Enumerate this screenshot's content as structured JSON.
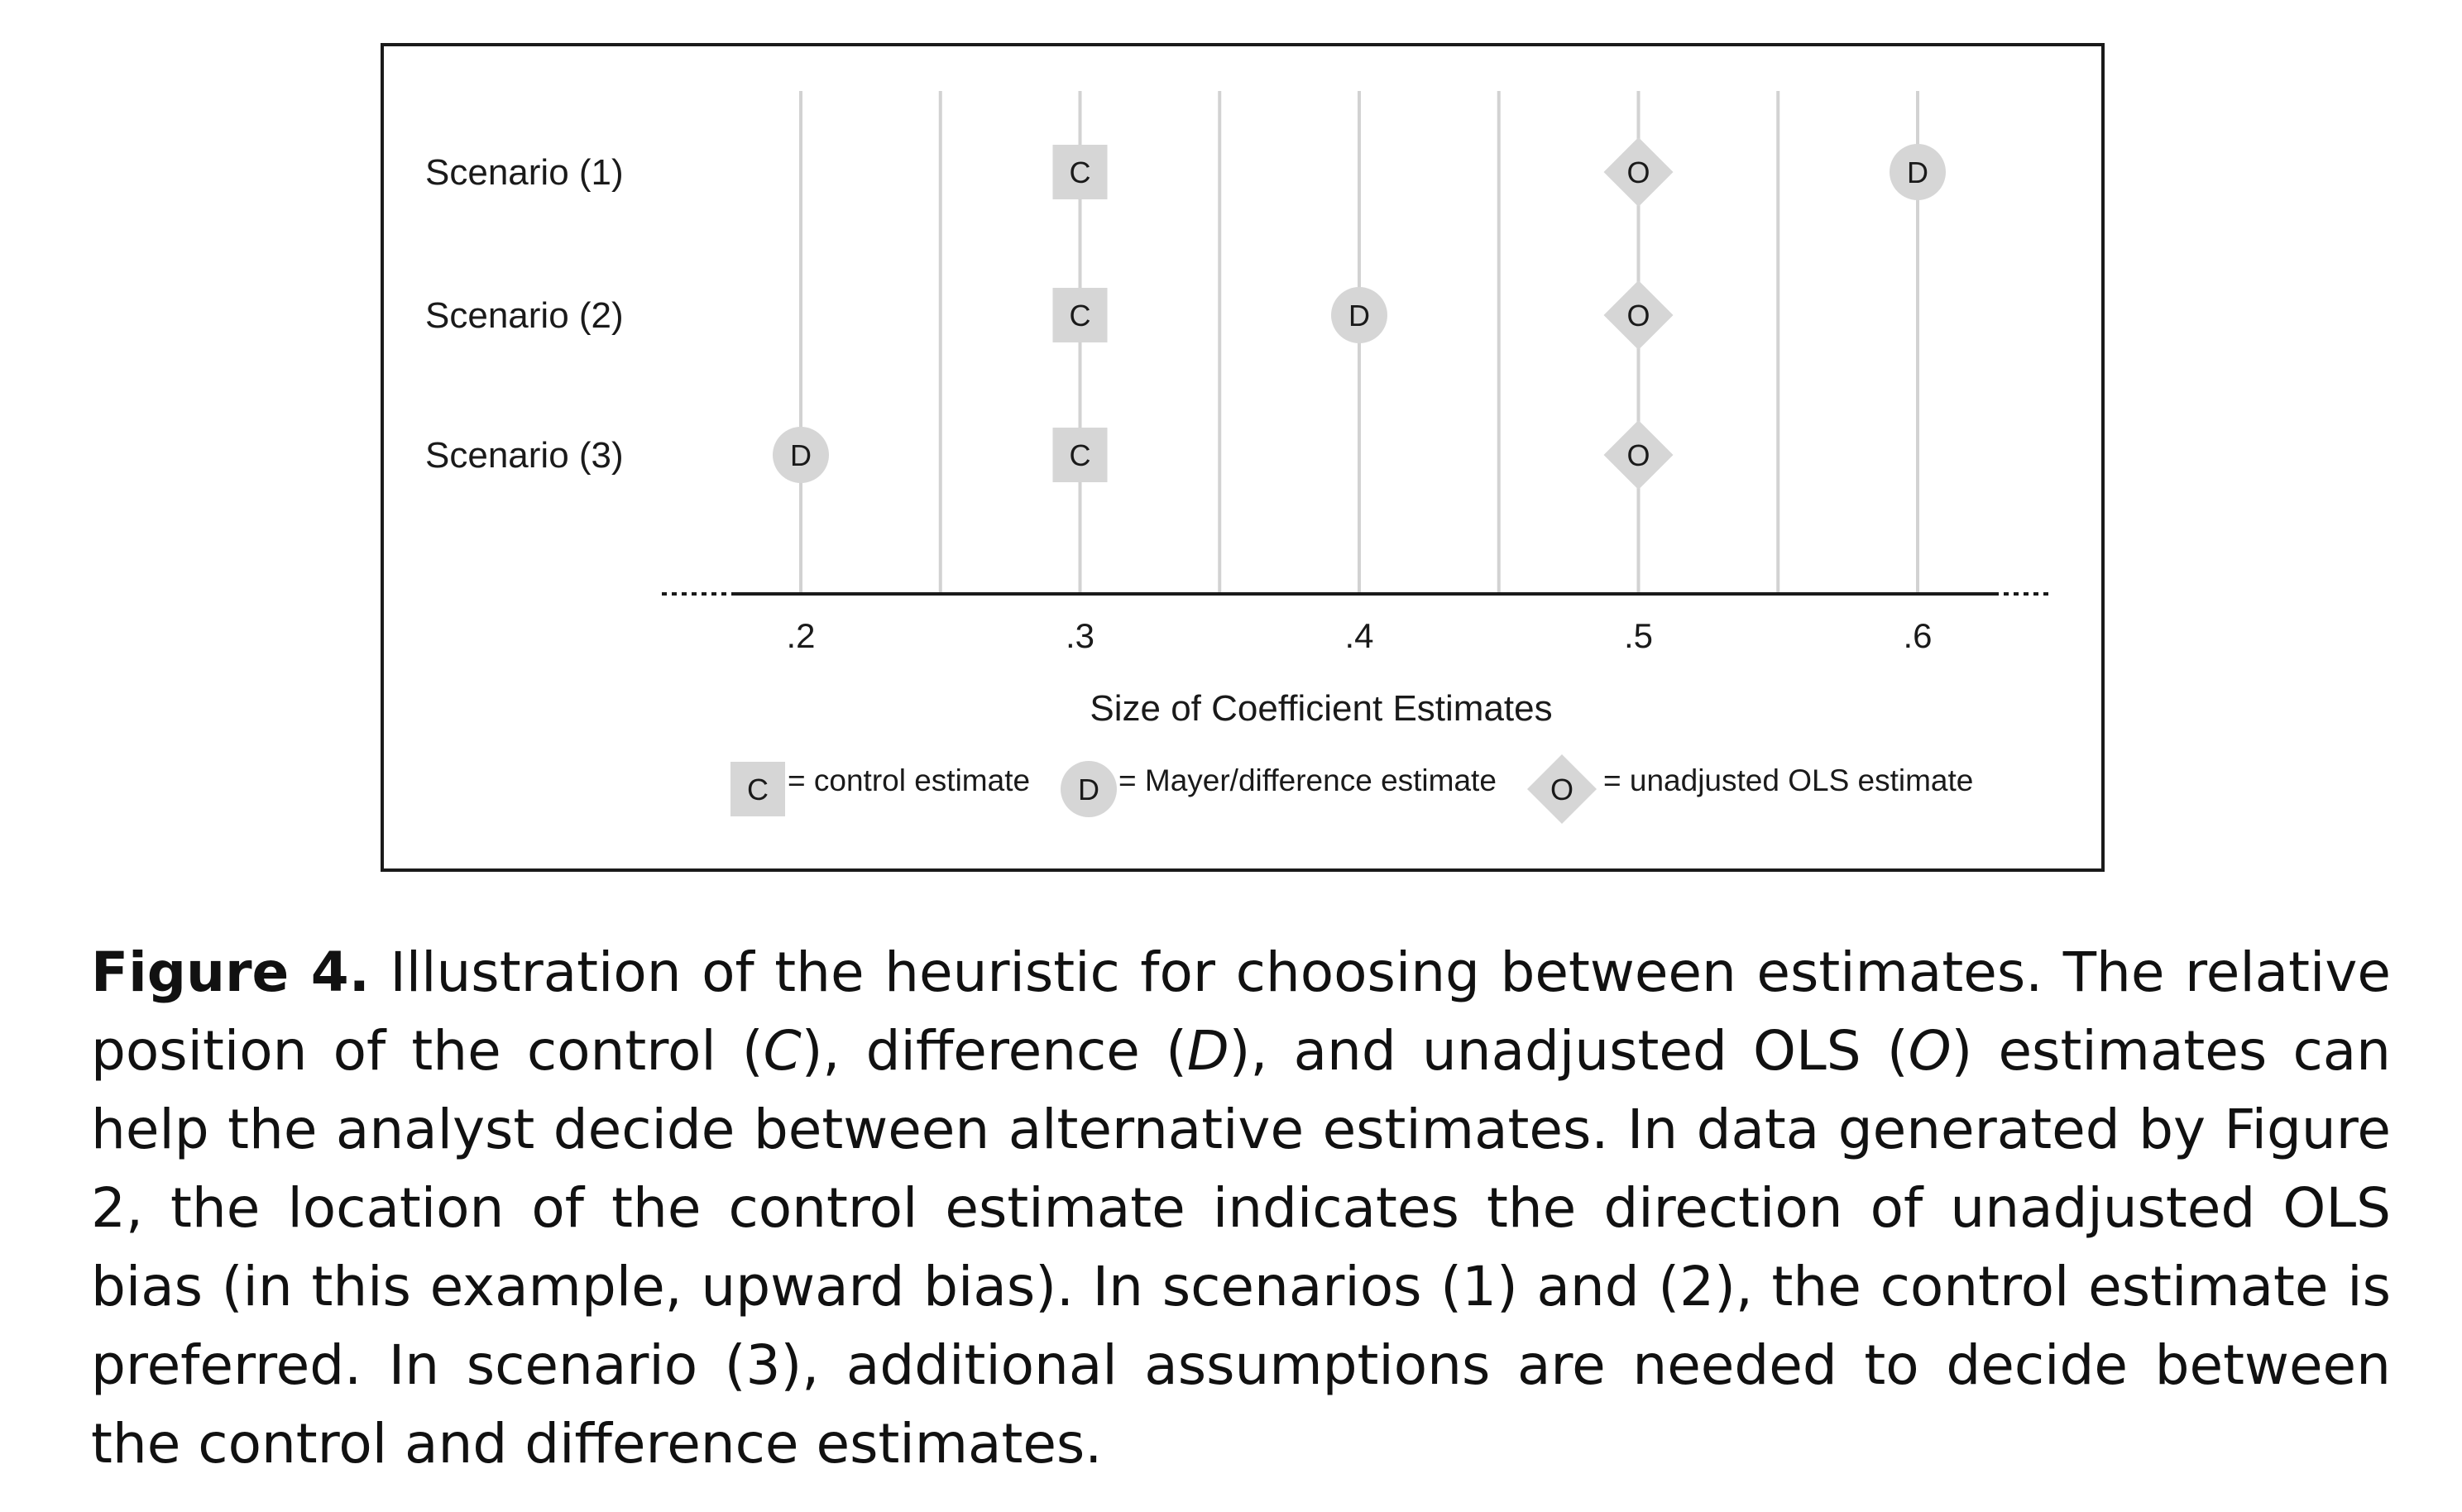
{
  "chart_data": {
    "type": "scatter",
    "title": "",
    "xlabel": "Size of Coefficient Estimates",
    "ylabel": "",
    "xlim": [
      0.15,
      0.65
    ],
    "x_ticks": [
      0.2,
      0.3,
      0.4,
      0.5,
      0.6
    ],
    "x_tick_labels": [
      ".2",
      ".3",
      ".4",
      ".5",
      ".6"
    ],
    "gridlines_at": [
      0.2,
      0.25,
      0.3,
      0.35,
      0.4,
      0.45,
      0.5,
      0.55,
      0.6
    ],
    "grid": true,
    "rows": [
      "Scenario (1)",
      "Scenario (2)",
      "Scenario (3)"
    ],
    "series": [
      {
        "name": "control estimate",
        "marker": "square",
        "letter": "C",
        "values": [
          0.3,
          0.3,
          0.3
        ]
      },
      {
        "name": "Mayer/difference estimate",
        "marker": "circle",
        "letter": "D",
        "values": [
          0.6,
          0.4,
          0.2
        ]
      },
      {
        "name": "unadjusted OLS estimate",
        "marker": "diamond",
        "letter": "O",
        "values": [
          0.5,
          0.5,
          0.5
        ]
      }
    ],
    "legend": {
      "placement": "bottom",
      "entries": [
        {
          "letter": "C",
          "text": "= control estimate"
        },
        {
          "letter": "D",
          "text": "= Mayer/difference estimate"
        },
        {
          "letter": "O",
          "text": "= unadjusted OLS estimate"
        }
      ]
    },
    "colors": {
      "marker_fill": "#d6d6d6",
      "gridline": "#d2d2d2",
      "axis": "#1a1a1a"
    }
  },
  "caption": {
    "label": "Figure 4.",
    "part1": " Illustration of the heuristic for choosing between estimates. The relative position of the control (",
    "c": "C",
    "part2": "), difference (",
    "d": "D",
    "part3": "), and unadjusted OLS (",
    "o": "O",
    "part4": ") estimates can help the analyst decide between alternative estimates. In data generated by Figure 2, the location of the control estimate indicates the direction of unadjusted OLS bias (in this example, upward bias). In scenarios (1) and (2), the control estimate is preferred. In scenario (3), additional assumptions are needed to decide between the control and difference estimates."
  }
}
